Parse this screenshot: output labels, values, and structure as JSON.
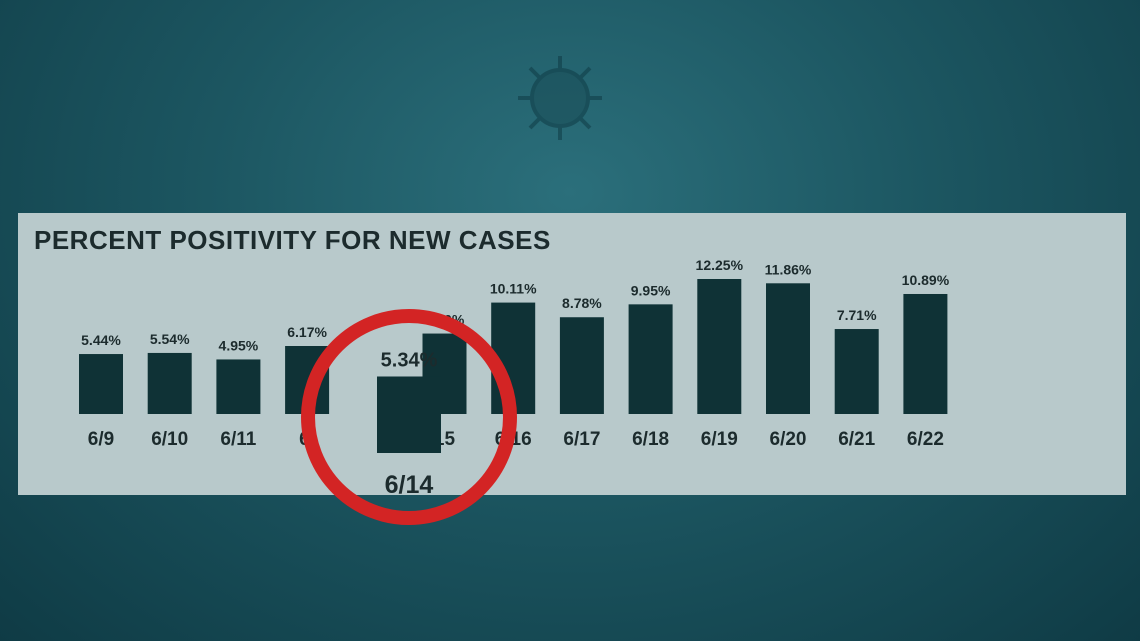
{
  "chart_data": {
    "type": "bar",
    "title": "PERCENT POSITIVITY FOR NEW CASES",
    "categories": [
      "6/9",
      "6/10",
      "6/11",
      "6/12",
      "6/14",
      "6/15",
      "6/16",
      "6/17",
      "6/18",
      "6/19",
      "6/20",
      "6/21",
      "6/22"
    ],
    "categories_shown": [
      "6/9",
      "6/10",
      "6/11",
      "6/",
      "6/14",
      "15",
      "6/16",
      "6/17",
      "6/18",
      "6/19",
      "6/20",
      "6/21",
      "6/22"
    ],
    "values": [
      5.44,
      5.54,
      4.95,
      6.17,
      5.34,
      7.3,
      10.11,
      8.78,
      9.95,
      12.25,
      11.86,
      7.71,
      10.89
    ],
    "value_labels": [
      "5.44%",
      "5.54%",
      "4.95%",
      "6.17%",
      "5.34%",
      "7.30%",
      "10.11%",
      "8.78%",
      "9.95%",
      "12.25%",
      "11.86%",
      "7.71%",
      "10.89%"
    ],
    "highlighted_category": "6/14",
    "xlabel": "",
    "ylabel": "",
    "ylim": [
      0,
      12.25
    ],
    "grid": false,
    "colors": {
      "bar": "#0f3236",
      "text": "#1c2b2d",
      "highlight_ring": "#d32424",
      "panel": "#b8c9cb"
    }
  }
}
